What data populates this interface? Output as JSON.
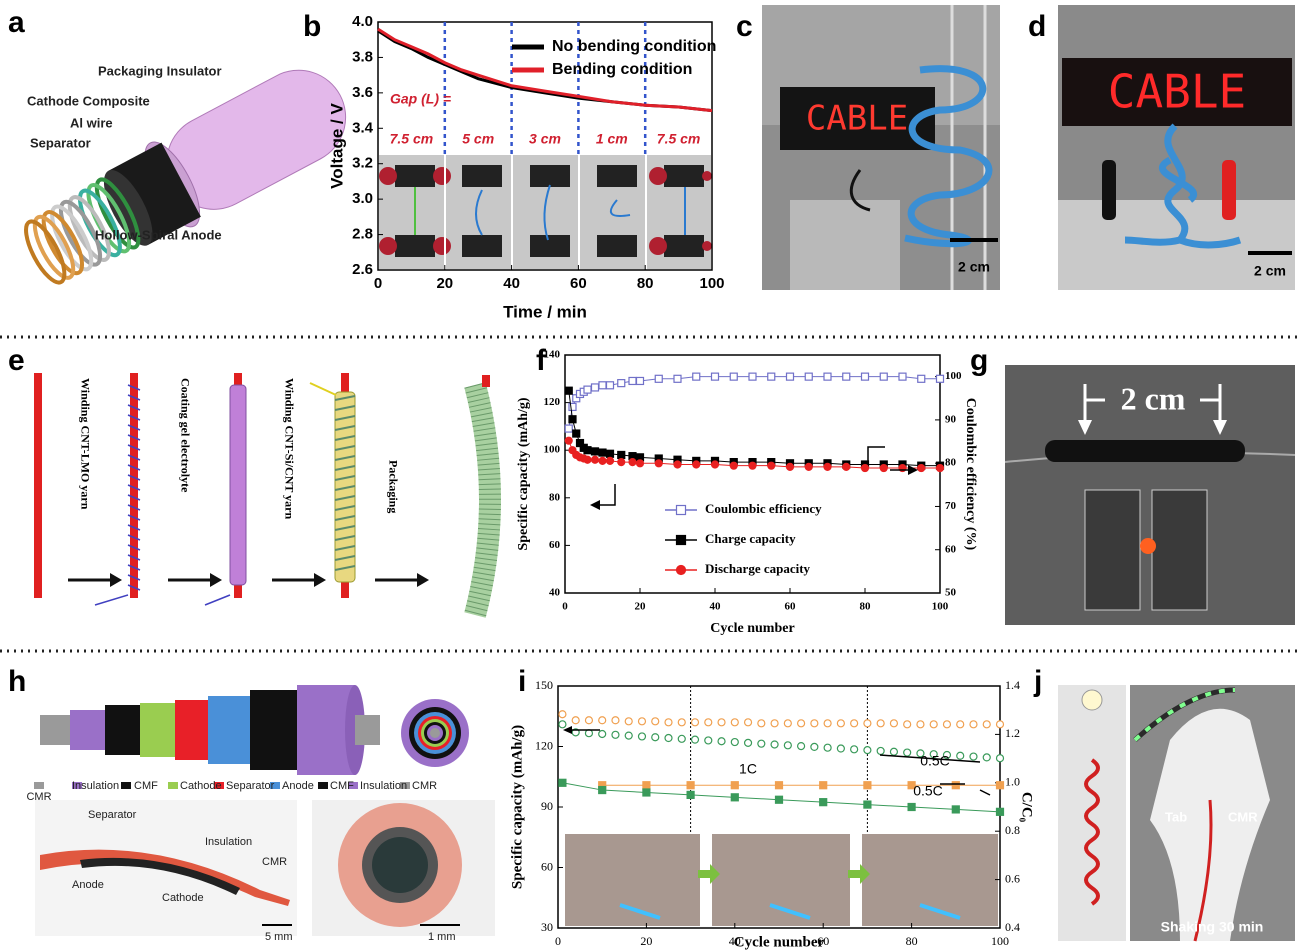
{
  "panel_letters": [
    "a",
    "b",
    "c",
    "d",
    "e",
    "f",
    "g",
    "h",
    "i",
    "j"
  ],
  "panel_a": {
    "labels": [
      "Packaging Insulator",
      "Cathode Composite",
      "Al wire",
      "Separator",
      "Hollow-Spiral Anode"
    ]
  },
  "panel_c": {
    "sign": "CABLE",
    "scale": "2 cm"
  },
  "panel_d": {
    "sign": "CABLE",
    "scale": "2 cm"
  },
  "panel_e": {
    "steps": [
      "Winding CNT-LMO yarn",
      "Coating gel electrolyte",
      "Winding CNT-Si/CNT yarn",
      "Packaging"
    ]
  },
  "panel_g": {
    "scale": "2 cm"
  },
  "panel_h": {
    "layers": [
      "CMR",
      "Insulation",
      "CMF",
      "Cathode",
      "Separator",
      "Anode",
      "CMF",
      "Insulation",
      "CMR"
    ],
    "photo_labels": [
      "Separator",
      "Insulation",
      "CMR",
      "Anode",
      "Cathode"
    ],
    "scales": [
      "5 mm",
      "1 mm"
    ]
  },
  "panel_j": {
    "labels": [
      "Tab",
      "CMR",
      "Shaking 30 min"
    ]
  },
  "chart_data": [
    {
      "type": "line",
      "xlabel": "Time / min",
      "ylabel": "Voltage / V",
      "xlim": [
        0,
        100
      ],
      "xticks": [
        0,
        20,
        40,
        60,
        80,
        100
      ],
      "ylim": [
        2.6,
        4.0
      ],
      "yticks": [
        2.6,
        2.8,
        {
          "value": 3,
          "label": "3.0"
        },
        3.2,
        3.4,
        3.6,
        3.8,
        {
          "value": 4,
          "label": "4.0"
        }
      ],
      "x": [
        0,
        5,
        10,
        15,
        20,
        25,
        30,
        40,
        50,
        60,
        70,
        80,
        90,
        100
      ],
      "series": [
        {
          "name": "No bending condition",
          "color": "#000000",
          "values": [
            3.95,
            3.89,
            3.85,
            3.8,
            3.76,
            3.72,
            3.68,
            3.63,
            3.6,
            3.57,
            3.55,
            3.53,
            3.52,
            3.5
          ]
        },
        {
          "name": "Bending condition",
          "color": "#e0202a",
          "values": [
            3.96,
            3.9,
            3.86,
            3.82,
            3.77,
            3.73,
            3.7,
            3.64,
            3.61,
            3.58,
            3.55,
            3.53,
            3.52,
            3.5
          ]
        }
      ],
      "legend": "upper right",
      "dividers": [
        20,
        40,
        60,
        80
      ],
      "divider_color": "#3355cc",
      "gap_label": "Gap (L) =",
      "gap_values": [
        "7.5 cm",
        "5 cm",
        "3 cm",
        "1 cm",
        "7.5 cm"
      ]
    },
    {
      "type": "line",
      "xlabel": "Cycle number",
      "ylabel": "Specific capacity (mAh/g)",
      "y2label": "Coulombic efficiency (%)",
      "xlim": [
        0,
        100
      ],
      "xticks": [
        0,
        20,
        40,
        60,
        80,
        100
      ],
      "ylim": [
        40,
        140
      ],
      "yticks": [
        40,
        60,
        80,
        100,
        120,
        140
      ],
      "y2lim": [
        50,
        105
      ],
      "y2ticks": [
        50,
        60,
        70,
        80,
        90,
        100
      ],
      "x": [
        1,
        2,
        3,
        4,
        5,
        6,
        8,
        10,
        12,
        15,
        18,
        20,
        25,
        30,
        35,
        40,
        45,
        50,
        55,
        60,
        65,
        70,
        75,
        80,
        85,
        90,
        95,
        100
      ],
      "series": [
        {
          "name": "Coulombic efficiency",
          "color": "#7070c8",
          "marker": "square-open",
          "axis": "y2",
          "values": [
            88,
            93,
            95,
            96,
            96.5,
            97,
            97.5,
            98,
            98,
            98.5,
            99,
            99,
            99.5,
            99.5,
            100,
            100,
            100,
            100,
            100,
            100,
            100,
            100,
            100,
            100,
            100,
            100,
            99.5,
            99.5
          ]
        },
        {
          "name": "Charge capacity",
          "color": "#000000",
          "marker": "square",
          "values": [
            125,
            113,
            107,
            103,
            101,
            100,
            99.5,
            99,
            98.5,
            98,
            97.5,
            97,
            96.5,
            96,
            95.5,
            95.5,
            95,
            95,
            95,
            94.5,
            94.5,
            94.5,
            94,
            94,
            94,
            94,
            93.5,
            93.5
          ]
        },
        {
          "name": "Discharge capacity",
          "color": "#e82020",
          "marker": "circle",
          "values": [
            104,
            100,
            98,
            97,
            96.5,
            96,
            96,
            95.5,
            95.5,
            95,
            95,
            94.5,
            94.5,
            94,
            94,
            94,
            93.5,
            93.5,
            93.5,
            93,
            93,
            93,
            93,
            92.5,
            92.5,
            92.5,
            92.5,
            92.5
          ]
        }
      ],
      "legend": "lower center"
    },
    {
      "type": "line",
      "xlabel": "Cycle number",
      "ylabel": "Specific capacity (mAh/g)",
      "y2label": "C/C₀",
      "xlim": [
        0,
        100
      ],
      "xticks": [
        0,
        20,
        40,
        60,
        80,
        100
      ],
      "ylim": [
        30,
        150
      ],
      "yticks": [
        30,
        60,
        90,
        120,
        150
      ],
      "y2lim": [
        0.4,
        1.4
      ],
      "y2ticks": [
        0.4,
        0.6,
        0.8,
        {
          "value": 1,
          "label": "1.0"
        },
        1.2,
        1.4
      ],
      "series": [
        {
          "color": "#f0a050",
          "marker": "circle-open",
          "line": false,
          "x": [
            1,
            4,
            7,
            10,
            13,
            16,
            19,
            22,
            25,
            28,
            31,
            34,
            37,
            40,
            43,
            46,
            49,
            52,
            55,
            58,
            61,
            64,
            67,
            70,
            73,
            76,
            79,
            82,
            85,
            88,
            91,
            94,
            97,
            100
          ],
          "values": [
            136,
            133,
            133,
            133,
            133,
            132.5,
            132.5,
            132.5,
            132,
            132,
            132,
            132,
            132,
            132,
            132,
            131.5,
            131.5,
            131.5,
            131.5,
            131.5,
            131.5,
            131.5,
            131.5,
            131.5,
            131.5,
            131.5,
            131,
            131,
            131,
            131,
            131,
            131,
            131,
            131
          ]
        },
        {
          "color": "#3a9a5a",
          "marker": "circle-open",
          "line": false,
          "x": [
            1,
            4,
            7,
            10,
            13,
            16,
            19,
            22,
            25,
            28,
            31,
            34,
            37,
            40,
            43,
            46,
            49,
            52,
            55,
            58,
            61,
            64,
            67,
            70,
            73,
            76,
            79,
            82,
            85,
            88,
            91,
            94,
            97,
            100
          ],
          "values": [
            131,
            127,
            126.6,
            126.2,
            125.8,
            125.4,
            125,
            124.6,
            124.2,
            123.8,
            123.4,
            123,
            122.6,
            122.2,
            121.8,
            121.4,
            121,
            120.6,
            120.2,
            119.8,
            119.4,
            119,
            118.6,
            118.2,
            117.8,
            117.4,
            117,
            116.6,
            116.2,
            115.8,
            115.4,
            115,
            114.6,
            114.2
          ]
        },
        {
          "color": "#f0a050",
          "marker": "square",
          "axis": "y2",
          "x": [
            10,
            20,
            30,
            40,
            50,
            60,
            70,
            80,
            90,
            100
          ],
          "values": [
            0.99,
            0.99,
            0.99,
            0.99,
            0.99,
            0.99,
            0.99,
            0.99,
            0.99,
            0.99
          ]
        },
        {
          "color": "#3a9a5a",
          "marker": "square",
          "axis": "y2",
          "x": [
            1,
            10,
            20,
            30,
            40,
            50,
            60,
            70,
            80,
            90,
            100
          ],
          "values": [
            1.0,
            0.97,
            0.96,
            0.95,
            0.94,
            0.93,
            0.92,
            0.91,
            0.9,
            0.89,
            0.88
          ]
        }
      ],
      "dividers": [
        30,
        70
      ],
      "divider_color": "#000000",
      "annotations": [
        "0.5C",
        "1C",
        "0.5C"
      ]
    }
  ]
}
